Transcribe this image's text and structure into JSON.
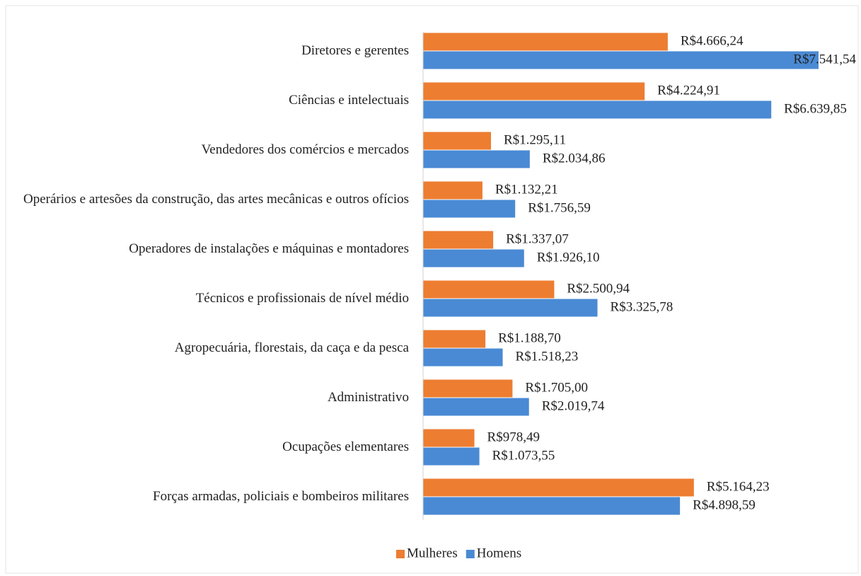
{
  "chart_data": {
    "type": "bar",
    "orientation": "horizontal",
    "categories": [
      "Diretores e gerentes",
      "Ciências e intelectuais",
      "Vendedores dos comércios e mercados",
      "Operários e artesões da construção, das artes mecânicas e outros ofícios",
      "Operadores de instalações e máquinas e montadores",
      "Técnicos e profissionais de nível médio",
      "Agropecuária, florestais, da caça e da pesca",
      "Administrativo",
      "Ocupações elementares",
      "Forças armadas, policiais e bombeiros militares"
    ],
    "series": [
      {
        "name": "Mulheres",
        "color": "#ED7D31",
        "values": [
          4666.24,
          4224.91,
          1295.11,
          1132.21,
          1337.07,
          2500.94,
          1188.7,
          1705.0,
          978.49,
          5164.23
        ],
        "value_labels": [
          "R$4.666,24",
          "R$4.224,91",
          "R$1.295,11",
          "R$1.132,21",
          "R$1.337,07",
          "R$2.500,94",
          "R$1.188,70",
          "R$1.705,00",
          "R$978,49",
          "R$5.164,23"
        ]
      },
      {
        "name": "Homens",
        "color": "#4A8AD4",
        "values": [
          7541.54,
          6639.85,
          2034.86,
          1756.59,
          1926.1,
          3325.78,
          1518.23,
          2019.74,
          1073.55,
          4898.59
        ],
        "value_labels": [
          "R$7.541,54",
          "R$6.639,85",
          "R$2.034,86",
          "R$1.756,59",
          "R$1.926,10",
          "R$3.325,78",
          "R$1.518,23",
          "R$2.019,74",
          "R$1.073,55",
          "R$4.898,59"
        ]
      }
    ],
    "xlim": [
      0,
      8000
    ],
    "legend": "bottom"
  }
}
